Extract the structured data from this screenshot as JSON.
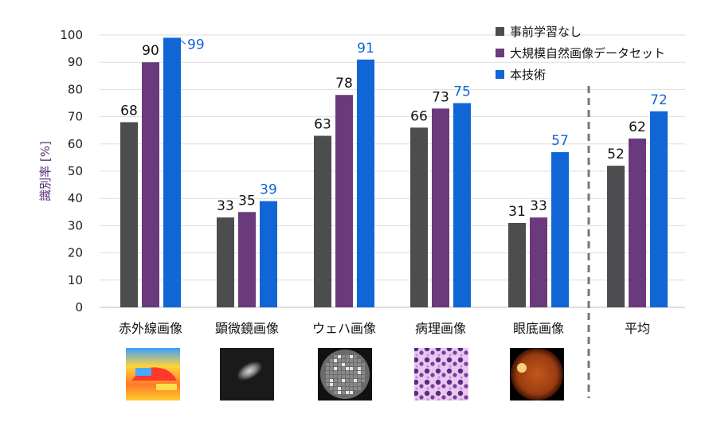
{
  "chart_data": {
    "type": "bar",
    "ylabel": "識別率 [%]",
    "ylim": [
      0,
      100
    ],
    "yticks": [
      0,
      10,
      20,
      30,
      40,
      50,
      60,
      70,
      80,
      90,
      100
    ],
    "grid": true,
    "legend_position": "top-right",
    "categories": [
      "赤外線画像",
      "顕微鏡画像",
      "ウェハ画像",
      "病理画像",
      "眼底画像",
      "平均"
    ],
    "series": [
      {
        "name": "事前学習なし",
        "color": "#4d4d4f",
        "label_color": "#111111",
        "values": [
          68,
          33,
          63,
          66,
          31,
          52
        ]
      },
      {
        "name": "大規模自然画像データセット",
        "color": "#6b3a7d",
        "label_color": "#111111",
        "values": [
          90,
          35,
          78,
          73,
          33,
          62
        ]
      },
      {
        "name": "本技術",
        "color": "#1166d6",
        "label_color": "#1166d6",
        "values": [
          99,
          39,
          91,
          75,
          57,
          72
        ]
      }
    ],
    "separator": {
      "style": "dashed",
      "before_category": "平均"
    },
    "thumbnails": [
      "infrared-thumbnail",
      "microscope-thumbnail",
      "wafer-thumbnail",
      "pathology-thumbnail",
      "fundus-thumbnail"
    ]
  }
}
